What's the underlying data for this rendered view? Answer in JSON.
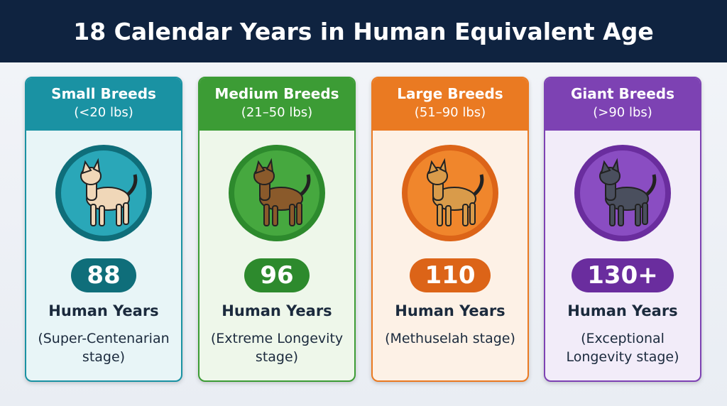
{
  "title": "18 Calendar Years in Human Equivalent Age",
  "cards": [
    {
      "name": "Small Breeds",
      "weight": "(<20 lbs)",
      "age": "88",
      "unit": "Human Years",
      "stage": "(Super-Centenarian stage)"
    },
    {
      "name": "Medium Breeds",
      "weight": "(21–50 lbs)",
      "age": "96",
      "unit": "Human Years",
      "stage": "(Extreme Longevity stage)"
    },
    {
      "name": "Large Breeds",
      "weight": "(51–90 lbs)",
      "age": "110",
      "unit": "Human Years",
      "stage": "(Methuselah stage)"
    },
    {
      "name": "Giant Breeds",
      "weight": "(>90 lbs)",
      "age": "130+",
      "unit": "Human Years",
      "stage": "(Exceptional Longevity stage)"
    }
  ]
}
